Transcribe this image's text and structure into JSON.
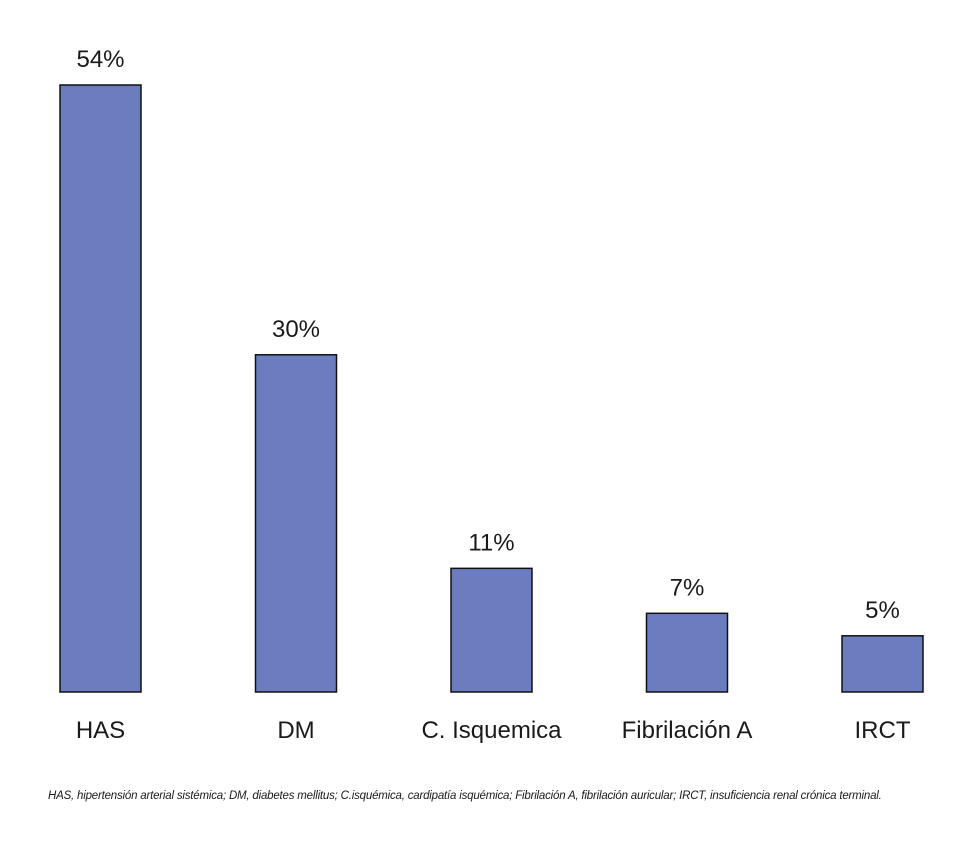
{
  "chart_data": {
    "type": "bar",
    "categories": [
      "HAS",
      "DM",
      "C. Isquemica",
      "Fibrilación A",
      "IRCT"
    ],
    "values": [
      54,
      30,
      11,
      7,
      5
    ],
    "value_labels": [
      "54%",
      "30%",
      "11%",
      "7%",
      "5%"
    ],
    "title": "",
    "xlabel": "",
    "ylabel": "",
    "ylim": [
      0,
      54
    ],
    "grid": false,
    "legend": "none",
    "bar_color": "#6b7dbf",
    "bar_edge_color": "#111111"
  },
  "footnote": "HAS, hipertensión arterial sistémica; DM, diabetes mellitus; C.isquémica, cardipatía isquémica; Fibrilación A, fibrilación auricular; IRCT, insuficiencia renal crónica terminal."
}
